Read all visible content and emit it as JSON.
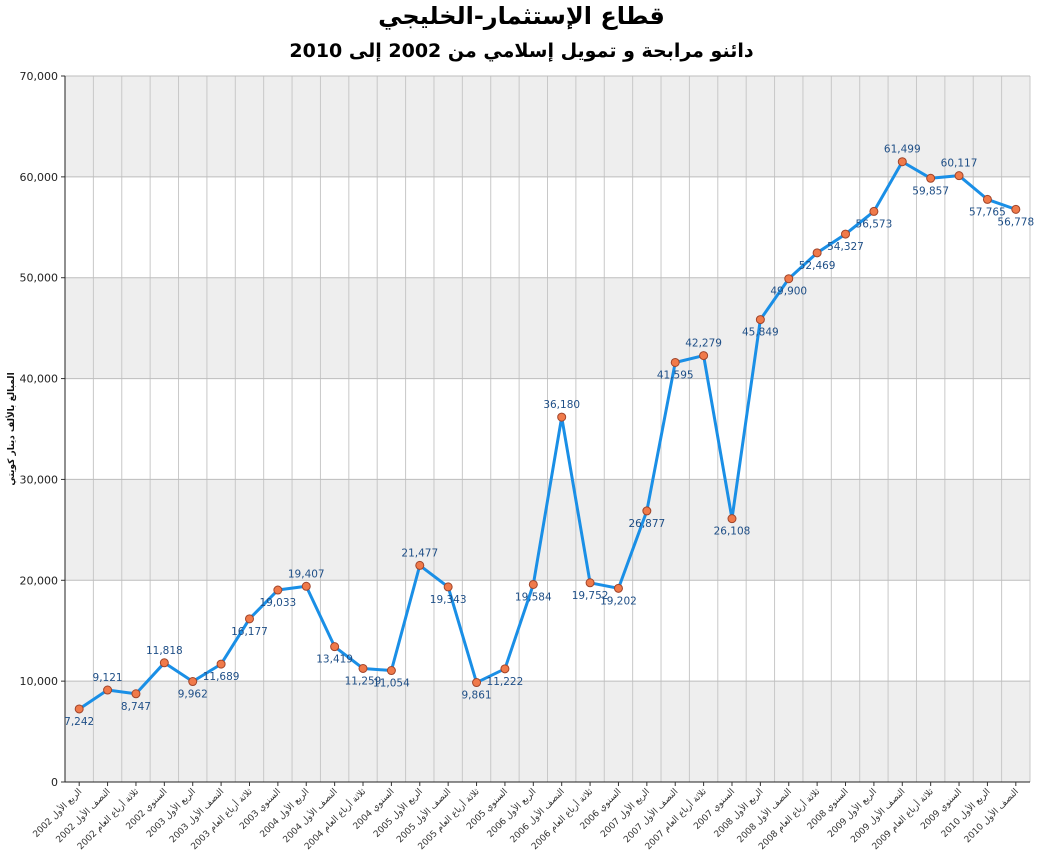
{
  "chart_data": {
    "type": "line",
    "title": "قطاع الإستثمار-الخليجي",
    "subtitle": "دائنو مرابحة و تمويل إسلامي من 2002 إلى 2010",
    "ylabel": "المبالغ بالألف دينار كويتي",
    "ylim": [
      0,
      70000
    ],
    "yticks": [
      "0",
      "10,000",
      "20,000",
      "30,000",
      "40,000",
      "50,000",
      "60,000",
      "70,000"
    ],
    "grid": true,
    "line_color": "#1a8fe6",
    "marker_color": "#f07a4a",
    "band_color": "#eeeeee",
    "categories": [
      "2002 الربع الأول",
      "2002 النصف الأول",
      "2002 ثلاثة أرباع العام",
      "2002 السنوي",
      "2003 الربع الأول",
      "2003 النصف الأول",
      "2003 ثلاثة أرباع العام",
      "2003 السنوي",
      "2004 الربع الأول",
      "2004 النصف الأول",
      "2004 ثلاثة أرباع العام",
      "2004 السنوي",
      "2005 الربع الأول",
      "2005 النصف الأول",
      "2005 ثلاثة أرباع العام",
      "2005 السنوي",
      "2006 الربع الأول",
      "2006 النصف الأول",
      "2006 ثلاثة أرباع العام",
      "2006 السنوي",
      "2007 الربع الأول",
      "2007 النصف الأول",
      "2007 ثلاثة أرباع العام",
      "2007 السنوي",
      "2008 الربع الأول",
      "2008 النصف الأول",
      "2008 ثلاثة أرباع العام",
      "2008 السنوي",
      "2009 الربع الأول",
      "2009 النصف الأول",
      "2009 ثلاثة أرباع العام",
      "2009 السنوي",
      "2010 الربع الأول",
      "2010 النصف الأول"
    ],
    "values": [
      7242,
      9121,
      8747,
      11818,
      9962,
      11689,
      16177,
      19033,
      19407,
      13419,
      11259,
      11054,
      21477,
      19343,
      9861,
      11222,
      19584,
      36180,
      19752,
      19202,
      26877,
      41595,
      42279,
      26108,
      45849,
      49900,
      52469,
      54327,
      56573,
      61499,
      59857,
      60117,
      57765,
      56778
    ],
    "data_labels": [
      "7,242",
      "9,121",
      "8,747",
      "11,818",
      "9,962",
      "11,689",
      "16,177",
      "19,033",
      "19,407",
      "13,419",
      "11,259",
      "11,054",
      "21,477",
      "19,343",
      "9,861",
      "11,222",
      "19,584",
      "36,180",
      "19,752",
      "19,202",
      "26,877",
      "41,595",
      "42,279",
      "26,108",
      "45,849",
      "49,900",
      "52,469",
      "54,327",
      "56,573",
      "61,499",
      "59,857",
      "60,117",
      "57,765",
      "56,778"
    ]
  }
}
